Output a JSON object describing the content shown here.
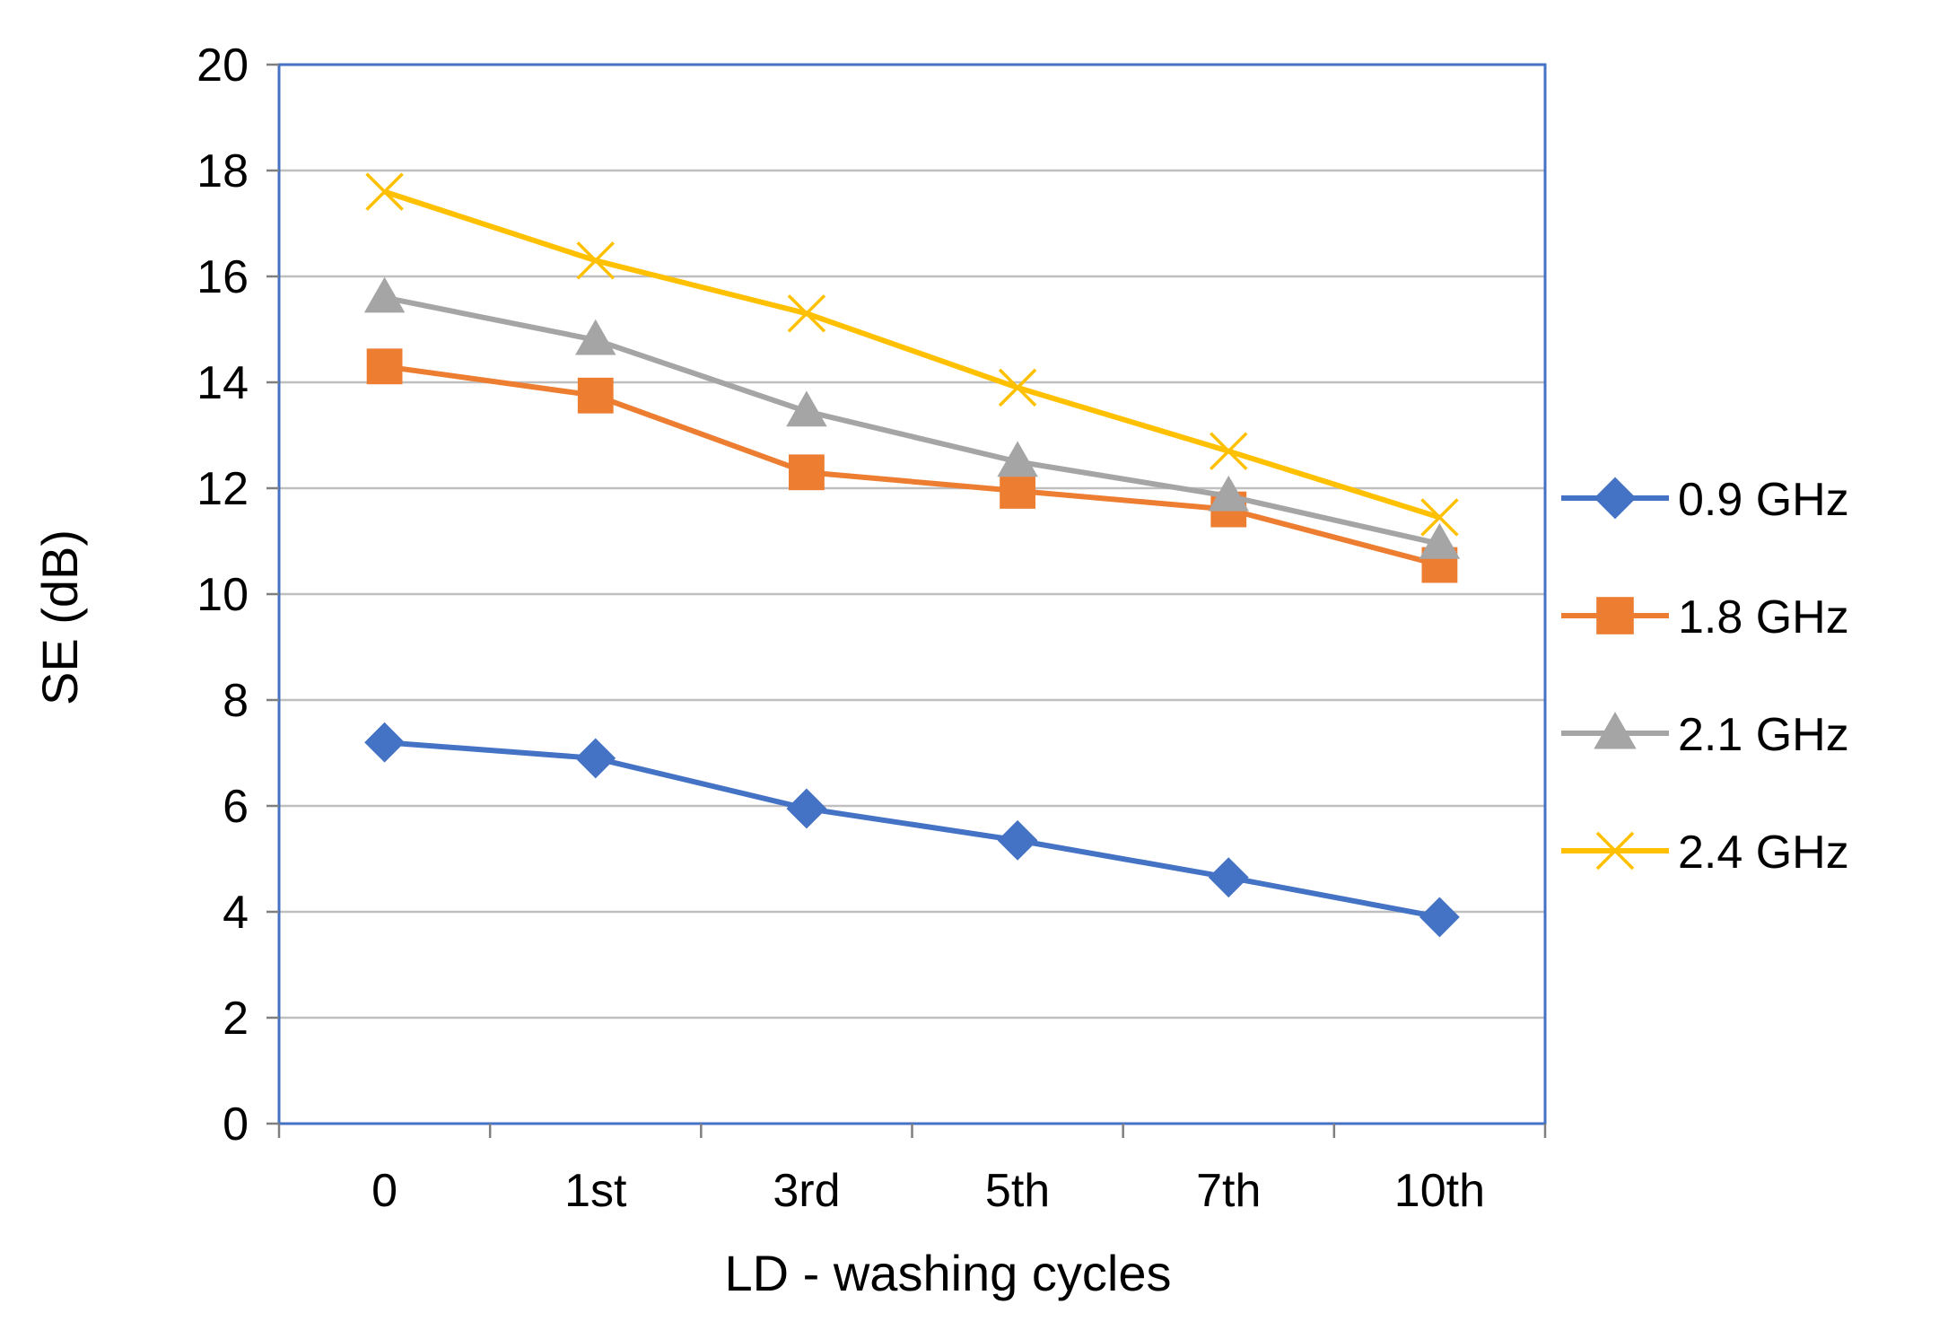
{
  "chart_data": {
    "type": "line",
    "title": "",
    "xlabel": "LD - washing cycles",
    "ylabel": "SE (dB)",
    "categories": [
      "0",
      "1st",
      "3rd",
      "5th",
      "7th",
      "10th"
    ],
    "ylim": [
      0,
      20
    ],
    "yticks": [
      0,
      2,
      4,
      6,
      8,
      10,
      12,
      14,
      16,
      18,
      20
    ],
    "grid": true,
    "legend_position": "right",
    "series": [
      {
        "name": "0.9 GHz",
        "color": "#4472C4",
        "marker": "diamond",
        "values": [
          7.2,
          6.9,
          5.95,
          5.35,
          4.65,
          3.9
        ]
      },
      {
        "name": "1.8 GHz",
        "color": "#ED7D31",
        "marker": "square",
        "values": [
          14.3,
          13.75,
          12.3,
          11.95,
          11.6,
          10.55
        ]
      },
      {
        "name": "2.1 GHz",
        "color": "#A5A5A5",
        "marker": "triangle",
        "values": [
          15.6,
          14.8,
          13.45,
          12.5,
          11.85,
          10.95
        ]
      },
      {
        "name": "2.4 GHz",
        "color": "#FFC000",
        "marker": "x",
        "values": [
          17.6,
          16.3,
          15.3,
          13.9,
          12.7,
          11.45
        ]
      }
    ]
  }
}
